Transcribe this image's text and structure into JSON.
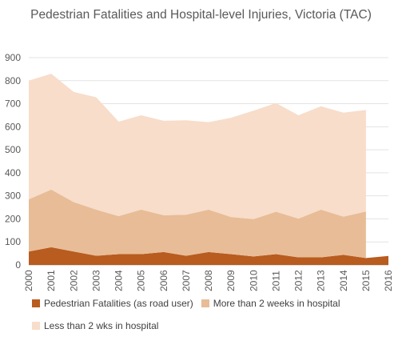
{
  "chart_data": {
    "type": "area",
    "stacked": true,
    "title": "Pedestrian Fatalities and Hospital-level Injuries, Victoria (TAC)",
    "xlabel": "",
    "ylabel": "",
    "ylim": [
      0,
      900
    ],
    "yticks": [
      0,
      100,
      200,
      300,
      400,
      500,
      600,
      700,
      800,
      900
    ],
    "grid": true,
    "legend_position": "bottom",
    "x": [
      "2000",
      "2001",
      "2002",
      "2003",
      "2004",
      "2005",
      "2006",
      "2007",
      "2008",
      "2009",
      "2010",
      "2011",
      "2012",
      "2013",
      "2014",
      "2015",
      "2016"
    ],
    "series": [
      {
        "name": "Pedestrian Fatalities (as road user)",
        "color": "#b85c1f",
        "values": [
          58,
          77,
          58,
          40,
          47,
          47,
          56,
          40,
          56,
          47,
          37,
          47,
          33,
          33,
          44,
          30,
          39
        ]
      },
      {
        "name": "More than 2 weeks in hospital",
        "color": "#e8bc96",
        "values": [
          227,
          250,
          215,
          200,
          165,
          193,
          160,
          178,
          184,
          161,
          162,
          184,
          168,
          207,
          166,
          202,
          null
        ]
      },
      {
        "name": "Less than 2 wks in hospital",
        "color": "#f7ddca",
        "values": [
          515,
          503,
          478,
          488,
          410,
          410,
          410,
          410,
          380,
          431,
          471,
          472,
          449,
          449,
          451,
          441,
          null
        ]
      }
    ]
  }
}
